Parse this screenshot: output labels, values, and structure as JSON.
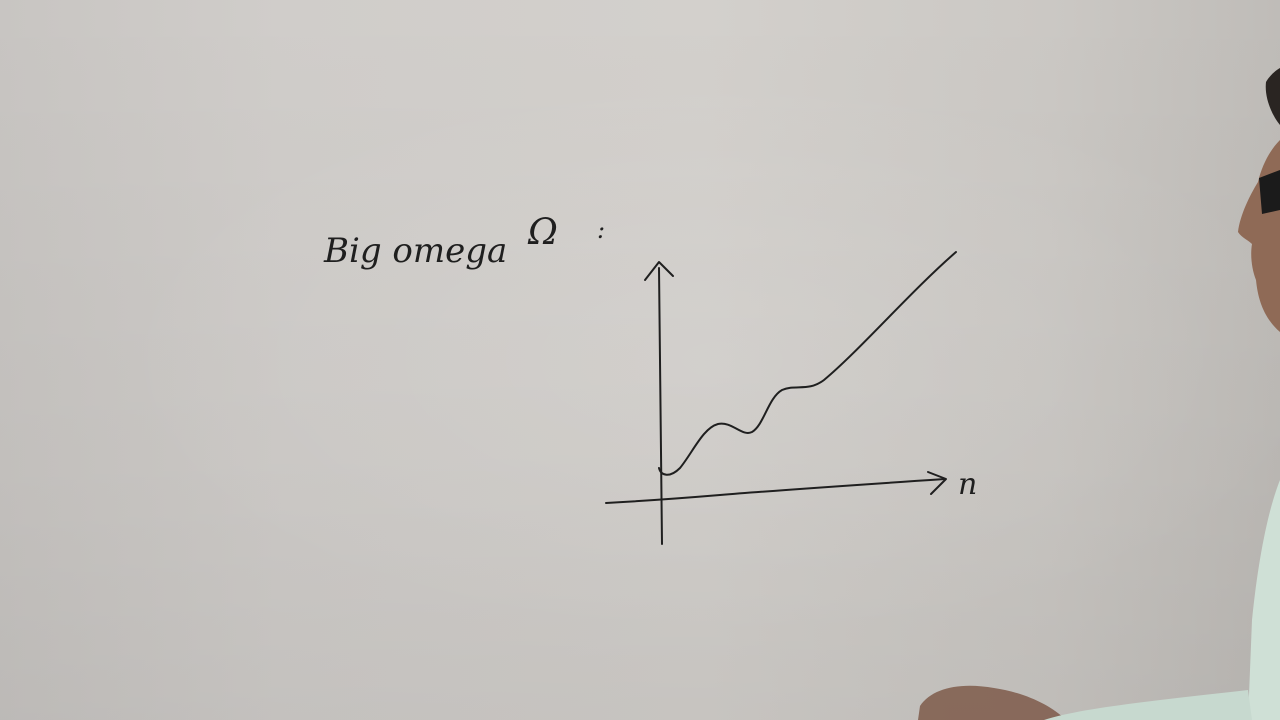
{
  "whiteboard": {
    "heading_text": "Big omega",
    "heading_symbol": "Ω",
    "heading_colon": ":",
    "x_axis_label": "n"
  },
  "colors": {
    "board": "#d0cdca",
    "ink": "#1f1f1f"
  }
}
